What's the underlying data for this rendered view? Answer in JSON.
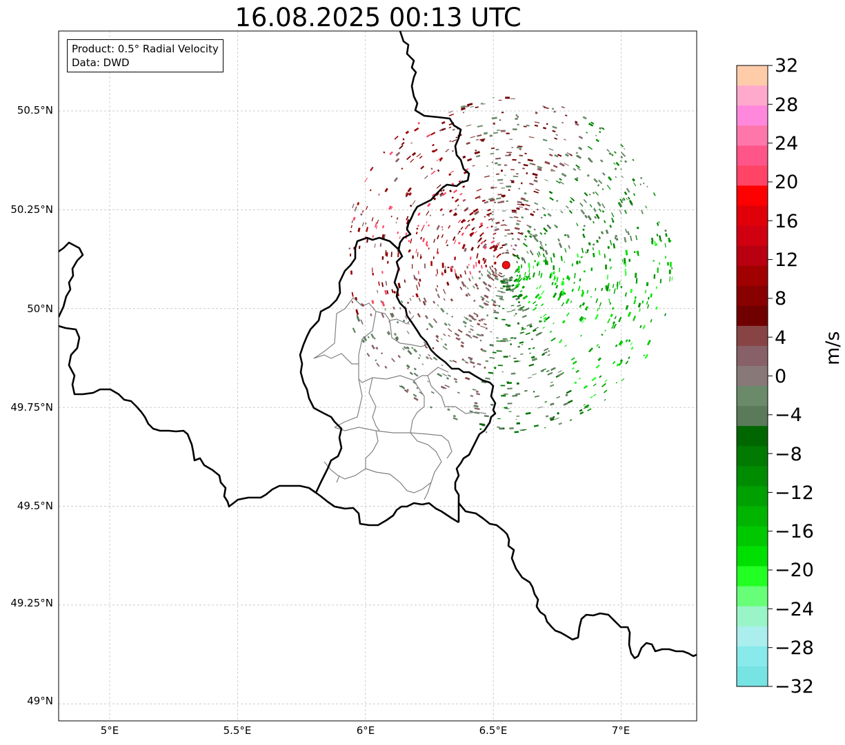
{
  "title": "16.08.2025 00:13 UTC",
  "info": {
    "product": "Product: 0.5° Radial Velocity",
    "source": "Data: DWD"
  },
  "axes": {
    "lat_ticks": [
      "50.5°N",
      "50.25°N",
      "50°N",
      "49.75°N",
      "49.5°N",
      "49.25°N",
      "49°N"
    ],
    "lon_ticks": [
      "5°E",
      "5.5°E",
      "6°E",
      "6.5°E",
      "7°E"
    ],
    "lat_values": [
      50.5,
      50.25,
      50.0,
      49.75,
      49.5,
      49.25,
      49.0
    ],
    "lon_values": [
      5.0,
      5.5,
      6.0,
      6.5,
      7.0
    ],
    "extent": {
      "lon_min": 4.8,
      "lon_max": 7.3,
      "lat_min": 48.95,
      "lat_max": 50.7
    },
    "gridlines": true
  },
  "colorbar": {
    "unit": "m/s",
    "tick_labels": [
      "32",
      "28",
      "24",
      "20",
      "16",
      "12",
      "8",
      "4",
      "0",
      "−4",
      "−8",
      "−12",
      "−16",
      "−20",
      "−24",
      "−28",
      "−32"
    ],
    "range": [
      -32,
      32
    ],
    "colors_top_to_bottom": [
      "#ffccaa",
      "#ffaacc",
      "#ff88dd",
      "#ff77aa",
      "#ff5588",
      "#ff4466",
      "#ff0000",
      "#e00008",
      "#d00010",
      "#b80010",
      "#a00000",
      "#880000",
      "#700000",
      "#884444",
      "#886068",
      "#887878",
      "#6a8a6a",
      "#5a7a5a",
      "#006600",
      "#007a00",
      "#008c00",
      "#00a000",
      "#00b400",
      "#00c800",
      "#00e000",
      "#22ff22",
      "#66ff77",
      "#99f5c8",
      "#aaeeee",
      "#88eaea",
      "#77e3e3"
    ]
  },
  "radar_site": {
    "lon": 6.55,
    "lat": 50.11,
    "color": "#ee1111"
  },
  "colors": {
    "border": "#000000",
    "subdivision": "#808080",
    "grid": "#bbbbbb"
  }
}
